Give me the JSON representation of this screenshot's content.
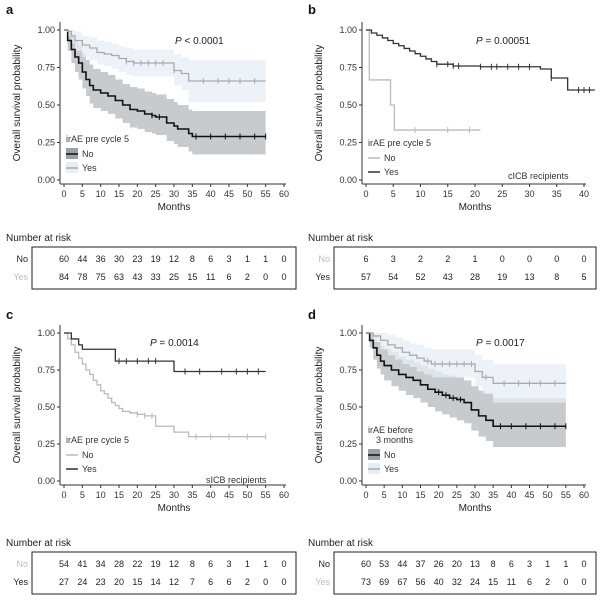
{
  "chart_data": [
    {
      "panel": "a",
      "type": "line",
      "pvalue": "< 0.0001",
      "ylabel": "Overall survival probability",
      "xlabel": "Months",
      "xlim": [
        0,
        60
      ],
      "ylim": [
        0,
        1
      ],
      "xticks": [
        0,
        5,
        10,
        15,
        20,
        25,
        30,
        35,
        40,
        45,
        50,
        55,
        60
      ],
      "yticks": [
        "0.00",
        "0.25",
        "0.50",
        "0.75",
        "1.00"
      ],
      "legend_title": "irAE pre cycle 5",
      "legend_items": [
        "No",
        "Yes"
      ],
      "legend_box": true,
      "subtitle": "",
      "series": [
        {
          "name": "No",
          "color": "#111111",
          "x": [
            0,
            1,
            2,
            3,
            4,
            5,
            6,
            7,
            8,
            10,
            12,
            14,
            16,
            18,
            20,
            22,
            24,
            25,
            27,
            28,
            30,
            31,
            33,
            34,
            35,
            55
          ],
          "y": [
            1.0,
            0.93,
            0.87,
            0.82,
            0.78,
            0.72,
            0.67,
            0.63,
            0.6,
            0.58,
            0.56,
            0.53,
            0.5,
            0.47,
            0.46,
            0.44,
            0.43,
            0.42,
            0.42,
            0.38,
            0.36,
            0.34,
            0.34,
            0.31,
            0.29,
            0.29
          ],
          "ci_upper": [
            1.0,
            1.0,
            0.97,
            0.93,
            0.9,
            0.84,
            0.8,
            0.77,
            0.74,
            0.72,
            0.7,
            0.67,
            0.64,
            0.62,
            0.61,
            0.59,
            0.58,
            0.57,
            0.57,
            0.54,
            0.52,
            0.5,
            0.5,
            0.47,
            0.46,
            0.46
          ],
          "ci_lower": [
            1.0,
            0.86,
            0.78,
            0.72,
            0.67,
            0.61,
            0.56,
            0.51,
            0.48,
            0.46,
            0.44,
            0.41,
            0.38,
            0.35,
            0.34,
            0.32,
            0.31,
            0.3,
            0.3,
            0.26,
            0.24,
            0.22,
            0.22,
            0.19,
            0.17,
            0.17
          ],
          "censor_x": [
            24,
            26,
            36,
            40,
            44,
            48,
            52,
            55
          ]
        },
        {
          "name": "Yes",
          "color": "#aaaaaa",
          "x": [
            0,
            1,
            2,
            3,
            5,
            7,
            9,
            11,
            13,
            15,
            17,
            19,
            30,
            32,
            34,
            55
          ],
          "y": [
            1.0,
            0.99,
            0.96,
            0.93,
            0.9,
            0.88,
            0.85,
            0.84,
            0.83,
            0.81,
            0.79,
            0.78,
            0.73,
            0.71,
            0.66,
            0.66
          ],
          "ci_upper": [
            1.0,
            1.0,
            1.0,
            0.99,
            0.96,
            0.95,
            0.93,
            0.92,
            0.91,
            0.89,
            0.88,
            0.87,
            0.84,
            0.82,
            0.8,
            0.8
          ],
          "ci_lower": [
            1.0,
            0.96,
            0.91,
            0.86,
            0.82,
            0.8,
            0.77,
            0.76,
            0.74,
            0.72,
            0.7,
            0.69,
            0.63,
            0.6,
            0.52,
            0.52
          ],
          "censor_x": [
            17,
            19,
            21,
            23,
            25,
            27,
            30,
            38,
            42,
            45,
            48,
            52
          ]
        }
      ],
      "risk_table": {
        "title": "Number at risk",
        "times": [
          0,
          5,
          10,
          15,
          20,
          25,
          30,
          35,
          40,
          45,
          50,
          55,
          60
        ],
        "rows": [
          {
            "label": "No",
            "color": "#222222",
            "values": [
              "60",
              "44",
              "36",
              "30",
              "23",
              "19",
              "12",
              "8",
              "6",
              "3",
              "1",
              "1",
              "0"
            ]
          },
          {
            "label": "Yes",
            "color": "#bbbbbb",
            "values": [
              "84",
              "78",
              "75",
              "63",
              "43",
              "33",
              "25",
              "15",
              "11",
              "6",
              "2",
              "0",
              "0"
            ]
          }
        ]
      }
    },
    {
      "panel": "b",
      "type": "line",
      "pvalue": "= 0.00051",
      "ylabel": "Overall survival probability",
      "xlabel": "Months",
      "xlim": [
        0,
        40
      ],
      "ylim": [
        0,
        1
      ],
      "xticks": [
        0,
        5,
        10,
        15,
        20,
        25,
        30,
        35,
        40
      ],
      "yticks": [
        "0.00",
        "0.25",
        "0.50",
        "0.75",
        "1.00"
      ],
      "legend_title": "irAE pre cycle 5",
      "legend_items": [
        "No",
        "Yes"
      ],
      "legend_box": false,
      "subtitle": "cICB recipients",
      "series": [
        {
          "name": "No",
          "color": "#bbbbbb",
          "x": [
            0,
            0.6,
            4.5,
            5.2,
            21
          ],
          "y": [
            1.0,
            0.667,
            0.5,
            0.333,
            0.333
          ],
          "censor_x": [
            9,
            15,
            19
          ]
        },
        {
          "name": "Yes",
          "color": "#333333",
          "x": [
            0,
            1,
            2,
            3,
            4,
            5,
            6,
            7,
            8,
            9,
            10,
            11,
            12,
            13,
            15,
            16,
            19,
            21,
            30,
            32,
            34,
            37,
            42
          ],
          "y": [
            1.0,
            0.98,
            0.965,
            0.947,
            0.93,
            0.91,
            0.895,
            0.877,
            0.86,
            0.842,
            0.825,
            0.807,
            0.79,
            0.772,
            0.772,
            0.76,
            0.76,
            0.755,
            0.755,
            0.74,
            0.68,
            0.6,
            0.6
          ],
          "censor_x": [
            13,
            15,
            16,
            17,
            21,
            23,
            24,
            26,
            28,
            30,
            34,
            39,
            40,
            41
          ]
        }
      ],
      "risk_table": {
        "title": "Number at risk",
        "times": [
          0,
          5,
          10,
          15,
          20,
          25,
          30,
          35,
          40
        ],
        "rows": [
          {
            "label": "No",
            "color": "#bbbbbb",
            "values": [
              "6",
              "3",
              "2",
              "2",
              "1",
              "0",
              "0",
              "0",
              "0"
            ]
          },
          {
            "label": "Yes",
            "color": "#222222",
            "values": [
              "57",
              "54",
              "52",
              "43",
              "28",
              "19",
              "13",
              "8",
              "5"
            ]
          }
        ]
      }
    },
    {
      "panel": "c",
      "type": "line",
      "pvalue": "= 0.0014",
      "ylabel": "Overall survival probability",
      "xlabel": "Months",
      "xlim": [
        0,
        60
      ],
      "ylim": [
        0,
        1
      ],
      "xticks": [
        0,
        5,
        10,
        15,
        20,
        25,
        30,
        35,
        40,
        45,
        50,
        55,
        60
      ],
      "yticks": [
        "0.00",
        "0.25",
        "0.50",
        "0.75",
        "1.00"
      ],
      "legend_title": "irAE pre cycle 5",
      "legend_items": [
        "No",
        "Yes"
      ],
      "legend_box": false,
      "subtitle": "sICB recipients",
      "series": [
        {
          "name": "No",
          "color": "#bbbbbb",
          "x": [
            0,
            1,
            2,
            3,
            4,
            5,
            6,
            7,
            8,
            9,
            10,
            11,
            12,
            13,
            14,
            15,
            16,
            18,
            20,
            22,
            25,
            30,
            34,
            55
          ],
          "y": [
            1.0,
            0.96,
            0.92,
            0.87,
            0.83,
            0.79,
            0.75,
            0.72,
            0.68,
            0.65,
            0.61,
            0.59,
            0.56,
            0.53,
            0.51,
            0.49,
            0.47,
            0.46,
            0.45,
            0.44,
            0.37,
            0.33,
            0.3,
            0.3
          ],
          "censor_x": [
            20,
            22,
            24,
            36,
            40,
            45,
            50,
            55
          ]
        },
        {
          "name": "Yes",
          "color": "#333333",
          "x": [
            0,
            1,
            2,
            4,
            5,
            14,
            30,
            55
          ],
          "y": [
            1.0,
            1.0,
            0.96,
            0.92,
            0.89,
            0.81,
            0.74,
            0.74
          ],
          "censor_x": [
            15,
            17,
            20,
            23,
            25,
            33,
            37,
            43,
            47,
            50,
            53
          ]
        }
      ],
      "risk_table": {
        "title": "Number at risk",
        "times": [
          0,
          5,
          10,
          15,
          20,
          25,
          30,
          35,
          40,
          45,
          50,
          55,
          60
        ],
        "rows": [
          {
            "label": "No",
            "color": "#bbbbbb",
            "values": [
              "54",
              "41",
              "34",
              "28",
              "22",
              "19",
              "12",
              "8",
              "6",
              "3",
              "1",
              "1",
              "0"
            ]
          },
          {
            "label": "Yes",
            "color": "#222222",
            "values": [
              "27",
              "24",
              "23",
              "20",
              "15",
              "14",
              "12",
              "7",
              "6",
              "6",
              "2",
              "0",
              "0"
            ]
          }
        ]
      }
    },
    {
      "panel": "d",
      "type": "line",
      "pvalue": "= 0.0017",
      "ylabel": "Overall survival probability",
      "xlabel": "Months",
      "xlim": [
        0,
        60
      ],
      "ylim": [
        0,
        1
      ],
      "xticks": [
        0,
        5,
        10,
        15,
        20,
        25,
        30,
        35,
        40,
        45,
        50,
        55,
        60
      ],
      "yticks": [
        "0.00",
        "0.25",
        "0.50",
        "0.75",
        "1.00"
      ],
      "legend_title": "irAE before",
      "legend_title_2": "3 months",
      "legend_items": [
        "No",
        "Yes"
      ],
      "legend_box": true,
      "subtitle": "",
      "series": [
        {
          "name": "No",
          "color": "#111111",
          "x": [
            0,
            1,
            2,
            3,
            4,
            5,
            7,
            9,
            11,
            13,
            15,
            17,
            19,
            21,
            23,
            25,
            27,
            29,
            31,
            33,
            35,
            55
          ],
          "y": [
            1.0,
            0.95,
            0.9,
            0.85,
            0.81,
            0.78,
            0.75,
            0.72,
            0.7,
            0.68,
            0.65,
            0.62,
            0.6,
            0.58,
            0.56,
            0.55,
            0.53,
            0.48,
            0.44,
            0.41,
            0.37,
            0.37
          ],
          "ci_upper": [
            1.0,
            1.0,
            0.98,
            0.94,
            0.91,
            0.89,
            0.87,
            0.84,
            0.82,
            0.8,
            0.78,
            0.76,
            0.74,
            0.72,
            0.71,
            0.7,
            0.68,
            0.64,
            0.61,
            0.59,
            0.56,
            0.56
          ],
          "ci_lower": [
            1.0,
            0.9,
            0.82,
            0.76,
            0.72,
            0.68,
            0.64,
            0.61,
            0.58,
            0.56,
            0.53,
            0.5,
            0.47,
            0.45,
            0.43,
            0.41,
            0.39,
            0.34,
            0.3,
            0.27,
            0.23,
            0.23
          ],
          "censor_x": [
            20,
            22,
            24,
            26,
            37,
            40,
            44,
            48,
            52,
            55
          ]
        },
        {
          "name": "Yes",
          "color": "#aaaaaa",
          "x": [
            0,
            2,
            4,
            6,
            8,
            10,
            12,
            14,
            16,
            18,
            30,
            32,
            35,
            55
          ],
          "y": [
            1.0,
            0.98,
            0.95,
            0.92,
            0.9,
            0.87,
            0.85,
            0.83,
            0.81,
            0.79,
            0.74,
            0.7,
            0.66,
            0.66
          ],
          "ci_upper": [
            1.0,
            1.0,
            1.0,
            0.99,
            0.97,
            0.95,
            0.93,
            0.92,
            0.9,
            0.89,
            0.85,
            0.82,
            0.79,
            0.79
          ],
          "ci_lower": [
            1.0,
            0.94,
            0.89,
            0.85,
            0.82,
            0.79,
            0.77,
            0.74,
            0.72,
            0.7,
            0.64,
            0.59,
            0.53,
            0.53
          ],
          "censor_x": [
            17,
            19,
            21,
            23,
            25,
            27,
            29,
            33,
            38,
            42,
            45,
            48,
            52
          ]
        }
      ],
      "risk_table": {
        "title": "Number at risk",
        "times": [
          0,
          5,
          10,
          15,
          20,
          25,
          30,
          35,
          40,
          45,
          50,
          55,
          60
        ],
        "rows": [
          {
            "label": "No",
            "color": "#222222",
            "values": [
              "60",
              "53",
              "44",
              "37",
              "26",
              "20",
              "13",
              "8",
              "6",
              "3",
              "1",
              "1",
              "0"
            ]
          },
          {
            "label": "Yes",
            "color": "#bbbbbb",
            "values": [
              "73",
              "69",
              "67",
              "56",
              "40",
              "32",
              "24",
              "15",
              "11",
              "6",
              "2",
              "0",
              "0"
            ]
          }
        ]
      }
    }
  ],
  "colors": {
    "band_no": "#9aa0a6",
    "band_yes": "#e6eef6",
    "axis": "#333333",
    "border": "#222222"
  }
}
